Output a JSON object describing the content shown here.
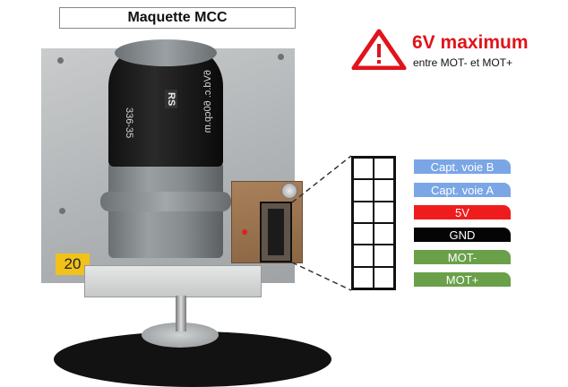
{
  "header": {
    "title": "Maquette MCC"
  },
  "warning": {
    "icon": "warning-triangle-icon",
    "title": "6V maximum",
    "subtitle": "entre MOT- et MOT+",
    "color": "#e0141b"
  },
  "photo": {
    "plate_label": "20",
    "motor_markings": {
      "line1": "6Vd.c. 60cp.m",
      "line2": "336-35",
      "brand": "RS"
    }
  },
  "pinout": {
    "labels": [
      {
        "text": "Capt. voie B",
        "bg": "#7aa6e6",
        "fg": "#ffffff"
      },
      {
        "text": "Capt. voie A",
        "bg": "#7aa6e6",
        "fg": "#ffffff"
      },
      {
        "text": "5V",
        "bg": "#ee1c1c",
        "fg": "#ffffff"
      },
      {
        "text": "GND",
        "bg": "#050505",
        "fg": "#ffffff"
      },
      {
        "text": "MOT-",
        "bg": "#6aa04a",
        "fg": "#ffffff"
      },
      {
        "text": "MOT+",
        "bg": "#6aa04a",
        "fg": "#ffffff"
      }
    ]
  }
}
